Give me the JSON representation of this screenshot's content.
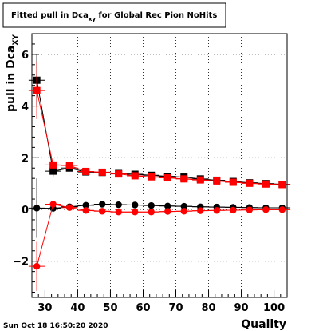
{
  "title": {
    "prefix": "Fitted pull in Dca",
    "subscript": "xy",
    "suffix": " for Global Rec Pion NoHits"
  },
  "timestamp": "Sun Oct 18 16:50:20 2020",
  "colors": {
    "series_black": "#000000",
    "series_red": "#ff0000",
    "grid": "#000000",
    "frame": "#000000"
  },
  "chart_data": {
    "type": "scatter",
    "title": "Fitted pull in Dca_xy for Global Rec Pion NoHits",
    "xlabel": "Quality",
    "ylabel_main": "pull in Dca",
    "ylabel_sub": "XY",
    "xlim": [
      26,
      104
    ],
    "ylim": [
      -3.4,
      6.8
    ],
    "grid": true,
    "x_ticks": [
      30,
      40,
      50,
      60,
      70,
      80,
      90,
      100
    ],
    "y_ticks": [
      -2,
      0,
      2,
      4,
      6
    ],
    "x_tick_labels": [
      "30",
      "40",
      "50",
      "60",
      "70",
      "80",
      "90",
      "100"
    ],
    "y_tick_labels": [
      "−2",
      "0",
      "2",
      "4",
      "6"
    ],
    "series": [
      {
        "marker": "square",
        "color": "#000000",
        "x": [
          27.5,
          32.5,
          37.5,
          42.5,
          47.5,
          52.5,
          57.5,
          62.5,
          67.5,
          72.5,
          77.5,
          82.5,
          87.5,
          92.5,
          97.5,
          102.5
        ],
        "y": [
          5.0,
          1.48,
          1.6,
          1.45,
          1.43,
          1.39,
          1.36,
          1.32,
          1.28,
          1.25,
          1.18,
          1.13,
          1.08,
          1.03,
          1.0,
          0.97
        ],
        "yerr": [
          1.0,
          0.2,
          0.07,
          0.06,
          0.05,
          0.05,
          0.05,
          0.05,
          0.05,
          0.05,
          0.05,
          0.05,
          0.05,
          0.05,
          0.05,
          0.05
        ]
      },
      {
        "marker": "square",
        "color": "#ff0000",
        "x": [
          27.5,
          32.5,
          37.5,
          42.5,
          47.5,
          52.5,
          57.5,
          62.5,
          67.5,
          72.5,
          77.5,
          82.5,
          87.5,
          92.5,
          97.5,
          102.5
        ],
        "y": [
          4.6,
          1.72,
          1.7,
          1.47,
          1.44,
          1.37,
          1.3,
          1.26,
          1.22,
          1.18,
          1.14,
          1.1,
          1.05,
          1.01,
          0.98,
          0.96
        ],
        "yerr": [
          1.1,
          0.1,
          0.06,
          0.05,
          0.05,
          0.05,
          0.05,
          0.05,
          0.05,
          0.05,
          0.05,
          0.05,
          0.05,
          0.05,
          0.05,
          0.05
        ]
      },
      {
        "marker": "circle",
        "color": "#000000",
        "x": [
          27.5,
          32.5,
          37.5,
          42.5,
          47.5,
          52.5,
          57.5,
          62.5,
          67.5,
          72.5,
          77.5,
          82.5,
          87.5,
          92.5,
          97.5,
          102.5
        ],
        "y": [
          0.05,
          0.04,
          0.1,
          0.16,
          0.2,
          0.18,
          0.17,
          0.15,
          0.13,
          0.12,
          0.1,
          0.09,
          0.08,
          0.07,
          0.06,
          0.06
        ],
        "yerr": [
          1.15,
          0.15,
          0.08,
          0.06,
          0.05,
          0.05,
          0.05,
          0.05,
          0.05,
          0.05,
          0.05,
          0.05,
          0.05,
          0.05,
          0.05,
          0.05
        ]
      },
      {
        "marker": "circle",
        "color": "#ff0000",
        "x": [
          27.5,
          32.5,
          37.5,
          42.5,
          47.5,
          52.5,
          57.5,
          62.5,
          67.5,
          72.5,
          77.5,
          82.5,
          87.5,
          92.5,
          97.5,
          102.5
        ],
        "y": [
          -2.2,
          0.2,
          0.07,
          -0.04,
          -0.07,
          -0.1,
          -0.1,
          -0.1,
          -0.08,
          -0.07,
          -0.05,
          -0.04,
          -0.03,
          -0.02,
          -0.01,
          -0.01
        ],
        "yerr": [
          0.95,
          0.12,
          0.07,
          0.05,
          0.05,
          0.05,
          0.05,
          0.05,
          0.05,
          0.05,
          0.05,
          0.05,
          0.05,
          0.05,
          0.05,
          0.05
        ]
      }
    ]
  }
}
